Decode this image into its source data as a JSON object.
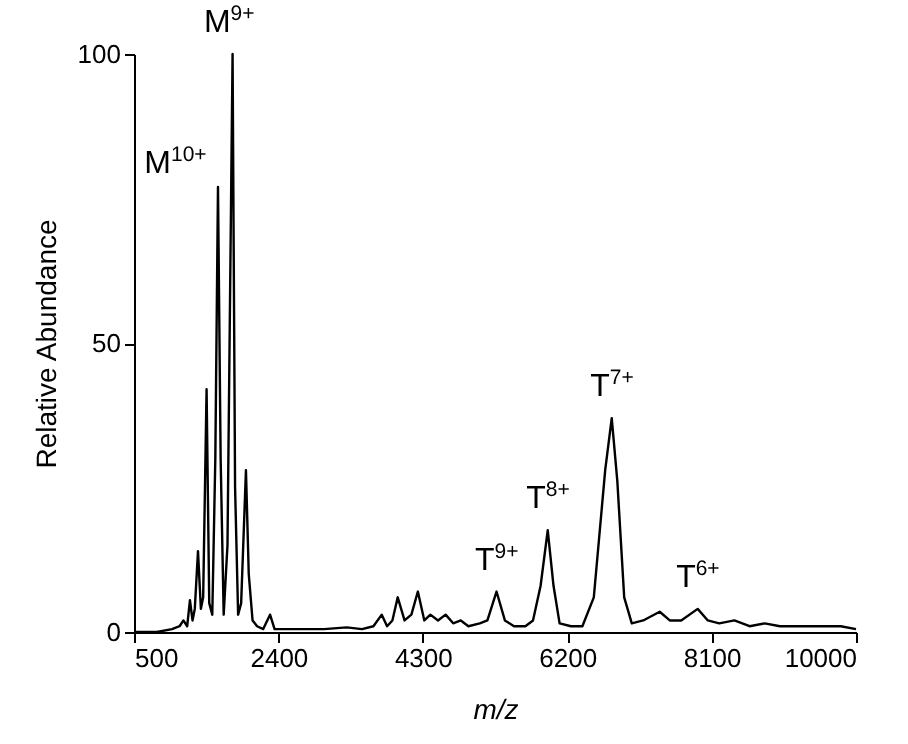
{
  "chart_data": {
    "type": "line",
    "xlabel": "m/z",
    "ylabel": "Relative Abundance",
    "x": [
      500,
      800,
      1000,
      1100,
      1150,
      1200,
      1236,
      1270,
      1300,
      1342,
      1380,
      1410,
      1455,
      1490,
      1530,
      1570,
      1605,
      1640,
      1680,
      1730,
      1797,
      1830,
      1870,
      1910,
      1973,
      2010,
      2060,
      2120,
      2200,
      2290,
      2350,
      2500,
      3000,
      3300,
      3500,
      3650,
      3760,
      3830,
      3900,
      3970,
      4060,
      4150,
      4235,
      4320,
      4400,
      4500,
      4600,
      4700,
      4800,
      4900,
      5050,
      5150,
      5270,
      5380,
      5500,
      5650,
      5750,
      5850,
      5944,
      6020,
      6100,
      6250,
      6400,
      6550,
      6700,
      6786,
      6860,
      6950,
      7050,
      7200,
      7417,
      7550,
      7700,
      7917,
      8050,
      8200,
      8400,
      8600,
      8800,
      9000,
      9300,
      9600,
      9800,
      10000
    ],
    "series": [
      {
        "color": "#000000",
        "values": [
          0,
          0,
          0.5,
          1,
          2,
          1,
          5.5,
          2,
          4,
          14,
          4,
          6,
          42,
          5,
          3,
          30,
          77,
          30,
          3,
          15,
          100,
          25,
          3,
          5,
          28,
          10,
          2,
          1,
          0.5,
          3,
          0.5,
          0.5,
          0.5,
          0.8,
          0.5,
          1,
          3,
          1,
          2,
          6,
          2,
          3,
          7,
          2,
          3,
          2,
          3,
          1.5,
          2,
          1,
          1.5,
          2,
          7,
          2,
          1,
          1,
          2,
          8,
          17.6,
          8,
          1.5,
          1,
          1,
          6,
          28,
          37,
          26,
          6,
          1.5,
          2,
          3.5,
          2,
          2,
          4,
          2,
          1.5,
          2,
          1,
          1.5,
          1,
          1,
          1,
          1,
          0.5
        ]
      }
    ],
    "xlim": [
      500,
      10000
    ],
    "xticks": [
      500,
      2400,
      4300,
      6200,
      8100,
      10000
    ],
    "ylim": [
      0,
      100
    ],
    "yticks": [
      0,
      50,
      100
    ],
    "grid": false,
    "marker": "none",
    "line_style": "solid",
    "annotations": [
      {
        "text": "M$^{10+}$",
        "x": 1605,
        "y": 77
      },
      {
        "text": "M$^{9+}$",
        "x": 1797,
        "y": 100
      },
      {
        "text": "T$^{9+}$",
        "x": 5270,
        "y": 7
      },
      {
        "text": "T$^{8+}$",
        "x": 5944,
        "y": 17.6
      },
      {
        "text": "T$^{7+}$",
        "x": 6786,
        "y": 37
      },
      {
        "text": "T$^{6+}$",
        "x": 7917,
        "y": 4
      }
    ]
  }
}
